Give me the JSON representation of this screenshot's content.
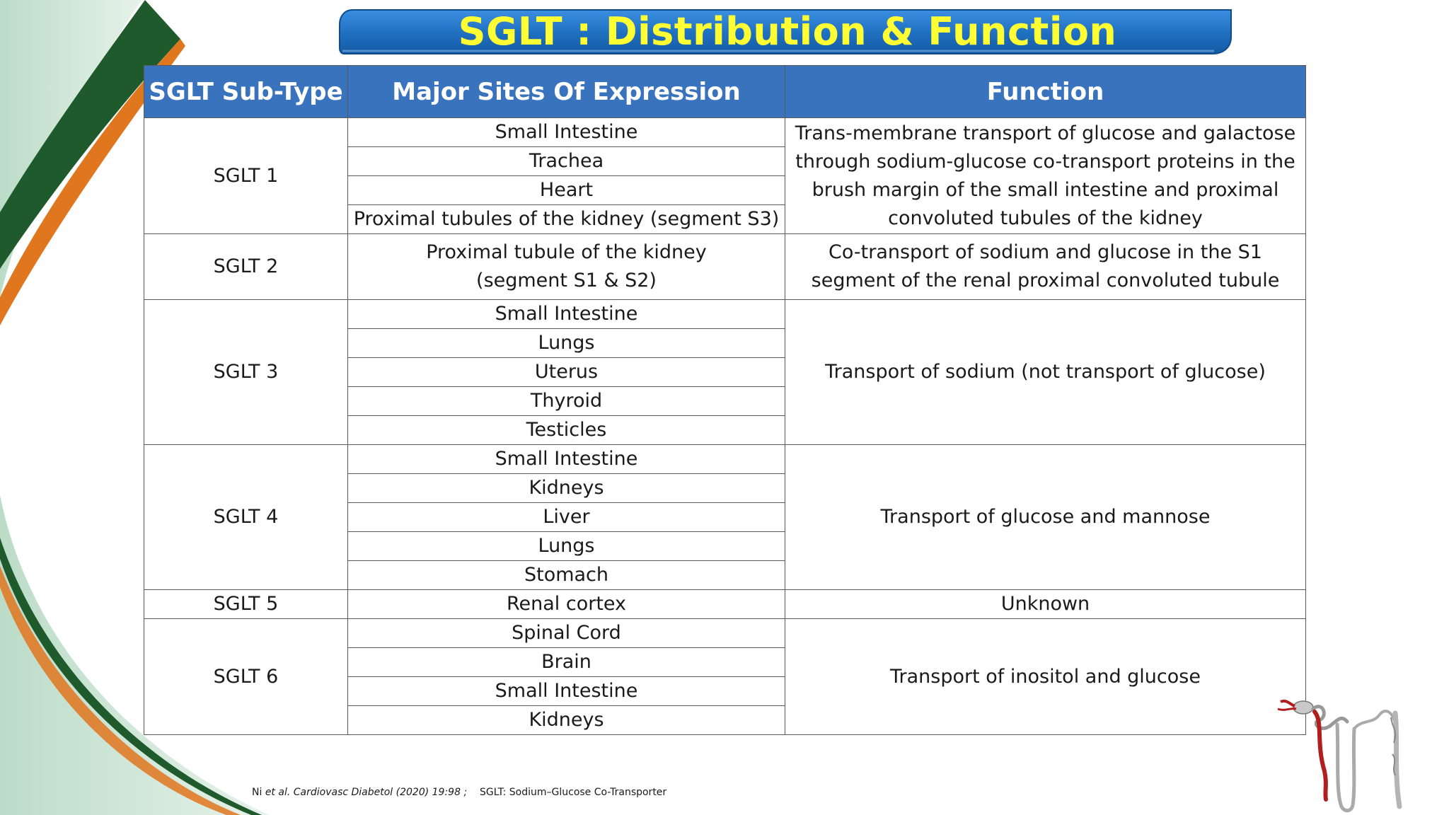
{
  "slide": {
    "title": "SGLT : Distribution & Function",
    "colors": {
      "title_text": "#ffff33",
      "banner_blue": "#1f6fc0",
      "header_blue": "#3a73bd",
      "green_dark": "#1f5a2c",
      "orange_stripe": "#e0761e",
      "mint_bg": "#cfe6d8"
    }
  },
  "table": {
    "headers": [
      "SGLT Sub-Type",
      "Major Sites Of Expression",
      "Function"
    ],
    "groups": [
      {
        "subtype": "SGLT 1",
        "sites": [
          "Small Intestine",
          "Trachea",
          "Heart",
          "Proximal tubules of the kidney (segment S3)"
        ],
        "function": "Trans-membrane  transport of glucose and galactose through sodium-glucose co-transport proteins in the brush margin of the small intestine and proximal convoluted tubules of the kidney"
      },
      {
        "subtype": "SGLT 2",
        "sites": [
          "Proximal tubule of the kidney (segment S1 & S2)"
        ],
        "function": "Co-transport of sodium and glucose in the S1 segment of the renal proximal convoluted tubule"
      },
      {
        "subtype": "SGLT 3",
        "sites": [
          "Small Intestine",
          "Lungs",
          "Uterus",
          "Thyroid",
          "Testicles"
        ],
        "function": "Transport of sodium (not transport of glucose)"
      },
      {
        "subtype": "SGLT 4",
        "sites": [
          "Small Intestine",
          "Kidneys",
          "Liver",
          "Lungs",
          "Stomach"
        ],
        "function": "Transport of glucose and mannose"
      },
      {
        "subtype": "SGLT 5",
        "sites": [
          "Renal cortex"
        ],
        "function": "Unknown"
      },
      {
        "subtype": "SGLT 6",
        "sites": [
          "Spinal Cord",
          "Brain",
          "Small Intestine",
          "Kidneys"
        ],
        "function": "Transport of inositol and glucose"
      }
    ]
  },
  "footnote": {
    "author": "Ni ",
    "etal": "et al.",
    "citation": " Cardiovasc Diabetol (2020) 19:98 ;",
    "spacer": "    ",
    "abbrev": "SGLT: Sodium–Glucose Co-Transporter"
  },
  "icons": [
    "nephron-illustration-icon"
  ]
}
